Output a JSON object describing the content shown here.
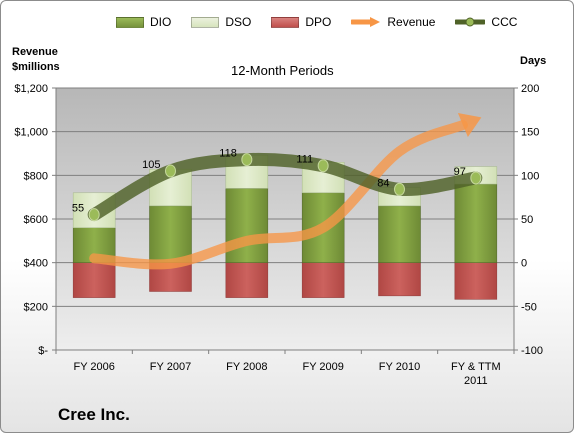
{
  "company": "Cree Inc.",
  "chart_data": {
    "type": "bar",
    "title": "12-Month Periods",
    "categories": [
      "FY 2006",
      "FY 2007",
      "FY 2008",
      "FY 2009",
      "FY 2010",
      "FY & TTM 2011"
    ],
    "y_left": {
      "label_line1": "Revenue",
      "label_line2": "$millions",
      "range": [
        0,
        1200
      ],
      "ticks": [
        "$-",
        "$200",
        "$400",
        "$600",
        "$800",
        "$1,000",
        "$1,200"
      ]
    },
    "y_right": {
      "label": "Days",
      "range": [
        -100,
        200
      ],
      "ticks": [
        "-100",
        "-50",
        "0",
        "50",
        "100",
        "150",
        "200"
      ]
    },
    "grid": true,
    "legend_position": "top",
    "series": [
      {
        "name": "DIO",
        "kind": "stacked-bar",
        "axis": "days",
        "color": "#77933c",
        "values": [
          40,
          65,
          85,
          80,
          65,
          90
        ]
      },
      {
        "name": "DSO",
        "kind": "stacked-bar",
        "axis": "days",
        "color": "#d7e4bd",
        "values": [
          40,
          42,
          38,
          35,
          21,
          20
        ]
      },
      {
        "name": "DPO",
        "kind": "negative-bar",
        "axis": "days",
        "color": "#c0504d",
        "values": [
          -40,
          -33,
          -40,
          -40,
          -38,
          -42
        ]
      },
      {
        "name": "Revenue",
        "kind": "arrow-line",
        "axis": "revenue",
        "color": "#f79646",
        "values": [
          420,
          395,
          500,
          560,
          910,
          1055
        ]
      },
      {
        "name": "CCC",
        "kind": "line-markers",
        "axis": "days",
        "color": "#4f6228",
        "values": [
          55,
          105,
          118,
          111,
          84,
          97
        ],
        "labels": [
          "55",
          "105",
          "118",
          "111",
          "84",
          "97"
        ]
      }
    ]
  }
}
